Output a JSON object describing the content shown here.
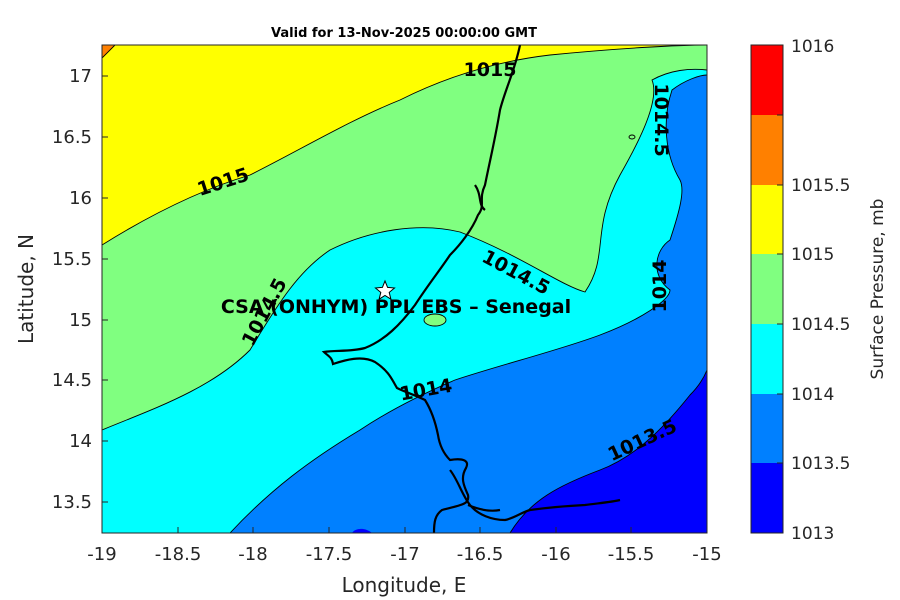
{
  "title": "Valid for 13-Nov-2025 00:00:00 GMT",
  "site_label": "CSA (ONHYM) PPL EBS  – Senegal",
  "x_axis": {
    "label": "Longitude, E",
    "range": [
      -19,
      -15
    ],
    "ticks": [
      "-19",
      "-18.5",
      "-18",
      "-17.5",
      "-17",
      "-16.5",
      "-16",
      "-15.5",
      "-15"
    ]
  },
  "y_axis": {
    "label": "Latitude, N",
    "range": [
      13.25,
      17.25
    ],
    "ticks": [
      "13.5",
      "14",
      "14.5",
      "15",
      "15.5",
      "16",
      "16.5",
      "17"
    ]
  },
  "colorbar": {
    "label": "Surface Pressure, mb",
    "ticks": [
      "1013",
      "1013.5",
      "1014",
      "1014.5",
      "1015",
      "1015.5",
      "1016"
    ],
    "colors": [
      "#0000ff",
      "#0080ff",
      "#00ffff",
      "#80ff80",
      "#ffff00",
      "#ff8000",
      "#ff0000"
    ]
  },
  "contour_labels": [
    "1015",
    "1015",
    "1014.5",
    "1014.5",
    "1014.5",
    "1014",
    "1014",
    "1013.5"
  ],
  "site": {
    "lon": -17.12,
    "lat": 15.23,
    "marker": "star-icon"
  }
}
